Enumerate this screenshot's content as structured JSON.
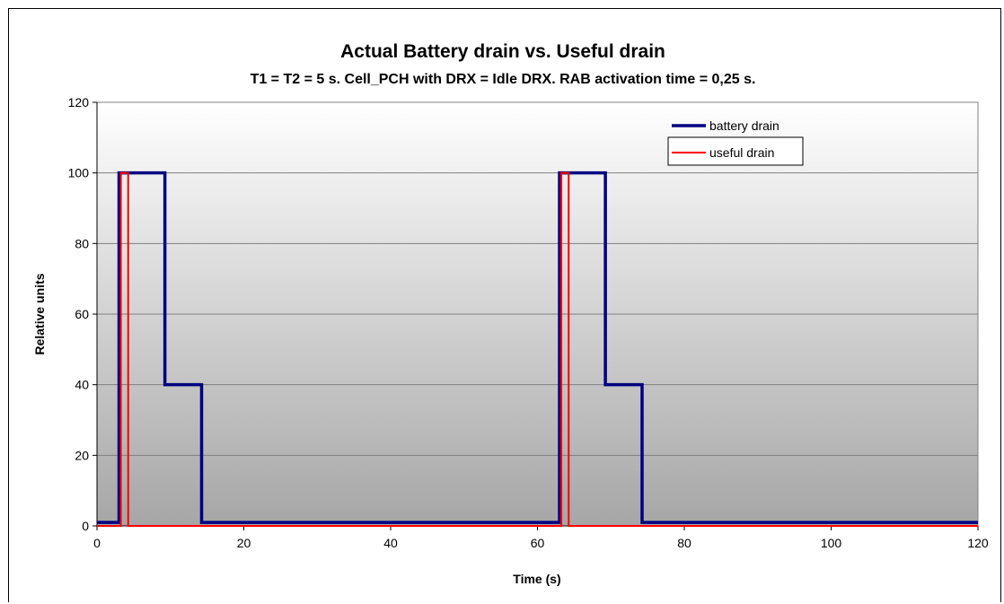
{
  "chart_data": {
    "type": "line",
    "title": "Actual Battery drain vs. Useful drain",
    "subtitle": "T1 = T2 = 5 s. Cell_PCH with DRX = Idle DRX. RAB activation time = 0,25 s.",
    "xlabel": "Time (s)",
    "ylabel": "Relative units",
    "xlim": [
      0,
      120
    ],
    "ylim": [
      0,
      120
    ],
    "xticks": [
      0,
      20,
      40,
      60,
      80,
      100,
      120
    ],
    "yticks": [
      0,
      20,
      40,
      60,
      80,
      100,
      120
    ],
    "grid": "horizontal",
    "legend_position": "top-right",
    "series": [
      {
        "name": "battery drain",
        "color": "#000080",
        "x": [
          0,
          3,
          3,
          9.25,
          9.25,
          14.25,
          14.25,
          63,
          63,
          69.25,
          69.25,
          74.25,
          74.25,
          120
        ],
        "y": [
          1,
          1,
          100,
          100,
          40,
          40,
          1,
          1,
          100,
          100,
          40,
          40,
          1,
          1
        ]
      },
      {
        "name": "useful drain",
        "color": "#ff0000",
        "x": [
          0,
          3.25,
          3.25,
          4.25,
          4.25,
          63.25,
          63.25,
          64.25,
          64.25,
          120
        ],
        "y": [
          0,
          0,
          100,
          100,
          0,
          0,
          100,
          100,
          0,
          0
        ]
      }
    ]
  }
}
